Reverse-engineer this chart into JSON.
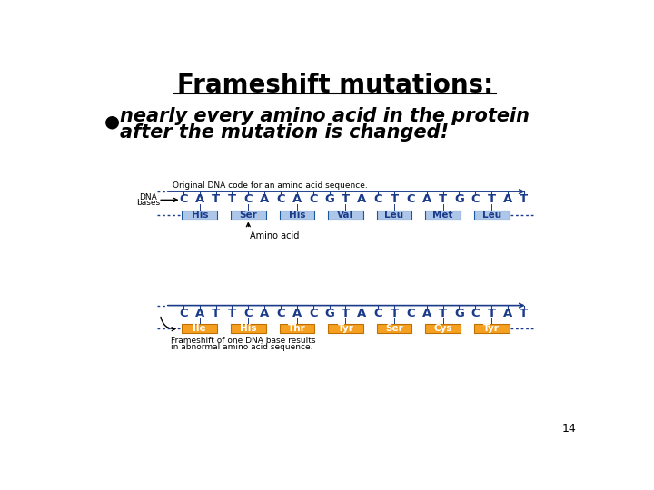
{
  "title": "Frameshift mutations:",
  "title_fontsize": 20,
  "title_underline": true,
  "bullet_text_line1": "nearly every amino acid in the protein",
  "bullet_text_line2": "after the mutation is changed!",
  "bullet_fontsize": 15,
  "dna_sequence": "C A T T C A C A C G T A C T C A T G C T A T",
  "dna_color": "#1a3a8a",
  "original_label": "Original DNA code for an amino acid sequence.",
  "amino_acid_label": "Amino acid",
  "original_amino_acids": [
    "His",
    "Ser",
    "His",
    "Val",
    "Leu",
    "Met",
    "Leu"
  ],
  "frameshift_amino_acids": [
    "Ile",
    "His",
    "Thr",
    "Tyr",
    "Ser",
    "Cys",
    "Tyr"
  ],
  "original_box_color": "#aec6e8",
  "original_box_edge": "#1a5a9a",
  "original_text_color": "#1a3a8a",
  "frameshift_box_color": "#f5a020",
  "frameshift_box_edge": "#c07000",
  "frameshift_text_color": "#ffffff",
  "arrow_color": "#1a3a8a",
  "frameshift_note_line1": "Frameshift of one DNA base results",
  "frameshift_note_line2": "in abnormal amino acid sequence.",
  "page_number": "14",
  "bg_color": "#ffffff"
}
